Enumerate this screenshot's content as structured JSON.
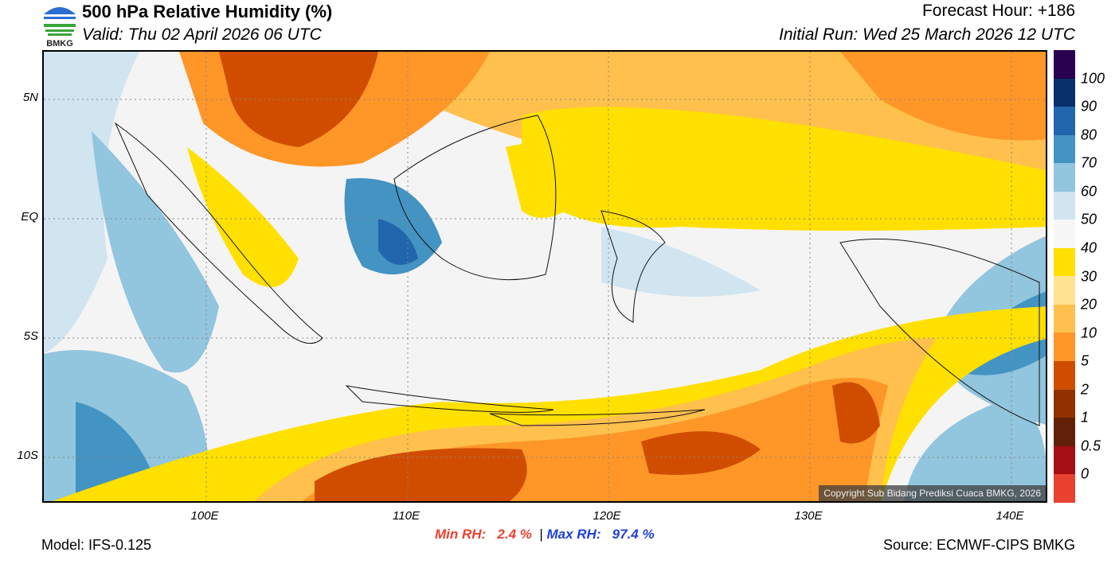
{
  "header": {
    "logo_text": "BMKG",
    "title": "500 hPa Relative Humidity (%)",
    "valid": "Valid: Thu 02 April 2026 06 UTC",
    "forecast_hour": "Forecast Hour: +186",
    "initial_run": "Initial Run: Wed 25 March 2026 12 UTC"
  },
  "axes": {
    "lat_labels": [
      "5N",
      "EQ",
      "5S",
      "10S"
    ],
    "lon_labels": [
      "100E",
      "110E",
      "120E",
      "130E",
      "140E"
    ]
  },
  "colorbar": {
    "colors": [
      "#2a0050",
      "#08306b",
      "#2166ac",
      "#4393c3",
      "#92c5de",
      "#d1e5f0",
      "#f7f7f7",
      "#ffe000",
      "#ffe38f",
      "#ffc04d",
      "#ff9628",
      "#d04d00",
      "#913000",
      "#632008",
      "#a50f15",
      "#e8412f"
    ],
    "labels": [
      "100",
      "90",
      "80",
      "70",
      "60",
      "50",
      "40",
      "30",
      "20",
      "10",
      "5",
      "2",
      "1",
      "0.5",
      "0"
    ]
  },
  "footer": {
    "min_label": "Min RH:",
    "min_value": "2.4 %",
    "separator": "|",
    "max_label": "Max RH:",
    "max_value": "97.4 %",
    "model": "Model: IFS-0.125",
    "source": "Source: ECMWF-CIPS BMKG",
    "copyright": "Copyright Sub Bidang Prediksi Cuaca BMKG, 2026",
    "min_color": "#e8412f",
    "max_color": "#1f3fd8"
  }
}
